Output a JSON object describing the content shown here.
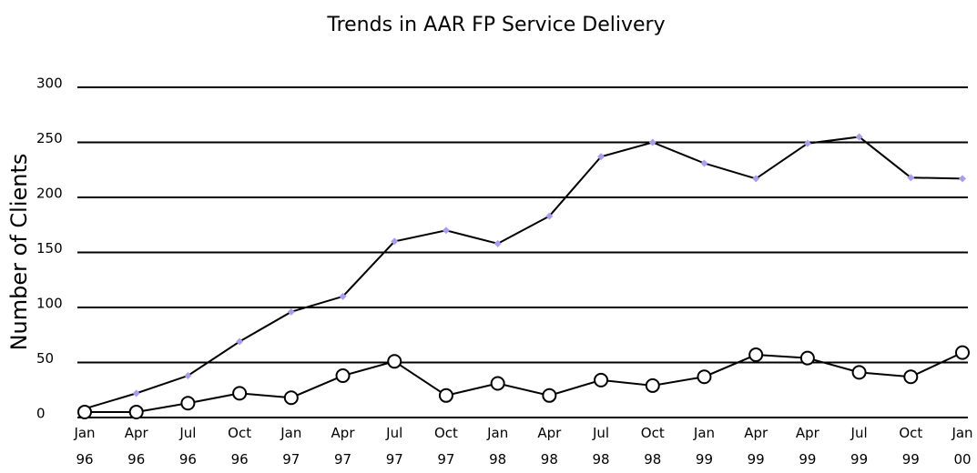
{
  "chart_data": {
    "type": "line",
    "title": "Trends in AAR FP Service Delivery",
    "y_label": "Number of Clients",
    "categories": [
      "Jan 96",
      "Apr 96",
      "Jul 96",
      "Oct 96",
      "Jan 97",
      "Apr 97",
      "Jul 97",
      "Oct 97",
      "Jan 98",
      "Apr 98",
      "Jul 98",
      "Oct 98",
      "Jan 99",
      "Apr 99",
      "Apr 99",
      "Jul 99",
      "Oct 99",
      "Jan 00"
    ],
    "series": [
      {
        "color": "#a99cf2",
        "marker": "diamond",
        "values": [
          8,
          22,
          38,
          69,
          96,
          110,
          160,
          170,
          158,
          183,
          237,
          250,
          231,
          217,
          249,
          255,
          218,
          217
        ]
      },
      {
        "color": "#ffffff",
        "marker": "circle",
        "values": [
          5,
          5,
          13,
          22,
          18,
          38,
          51,
          20,
          31,
          20,
          34,
          29,
          37,
          57,
          54,
          41,
          37,
          59
        ]
      }
    ],
    "ylim": [
      0,
      300
    ],
    "yticks": [
      0,
      50,
      100,
      150,
      200,
      250,
      300
    ],
    "grid": true
  }
}
